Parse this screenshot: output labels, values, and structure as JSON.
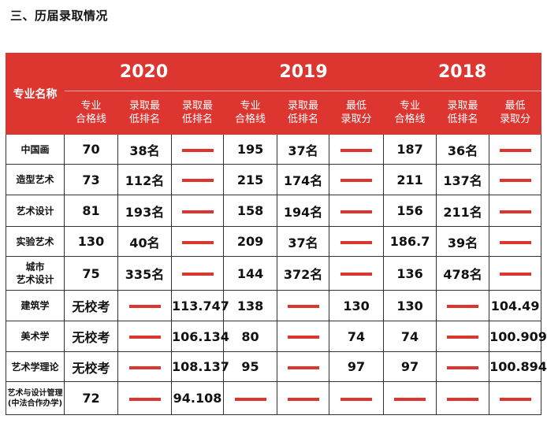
{
  "heading": "三、历届录取情况",
  "table": {
    "major_header": "专业名称",
    "years": [
      {
        "year": "2020",
        "subheaders": [
          "专业\n合格线",
          "录取最\n低排名",
          "录取最\n低排名"
        ]
      },
      {
        "year": "2019",
        "subheaders": [
          "专业\n合格线",
          "录取最\n低排名",
          "最低\n录取分"
        ]
      },
      {
        "year": "2018",
        "subheaders": [
          "专业\n合格线",
          "录取最\n低排名",
          "最低\n录取分"
        ]
      }
    ],
    "dash_color": "#dd3530",
    "header_color": "#dd3530",
    "rows": [
      {
        "major": "中国画",
        "cells": [
          "70",
          "38名",
          "—",
          "195",
          "37名",
          "—",
          "187",
          "36名",
          "—"
        ]
      },
      {
        "major": "造型艺术",
        "cells": [
          "73",
          "112名",
          "—",
          "215",
          "174名",
          "—",
          "211",
          "137名",
          "—"
        ]
      },
      {
        "major": "艺术设计",
        "cells": [
          "81",
          "193名",
          "—",
          "158",
          "194名",
          "—",
          "156",
          "211名",
          "—"
        ]
      },
      {
        "major": "实验艺术",
        "cells": [
          "130",
          "40名",
          "—",
          "209",
          "37名",
          "—",
          "186.7",
          "39名",
          "—"
        ]
      },
      {
        "major": "城市\n艺术设计",
        "cells": [
          "75",
          "335名",
          "—",
          "144",
          "372名",
          "—",
          "136",
          "478名",
          "—"
        ]
      },
      {
        "major": "建筑学",
        "cells": [
          "无校考",
          "—",
          "113.747",
          "138",
          "—",
          "130",
          "130",
          "—",
          "104.49"
        ]
      },
      {
        "major": "美术学",
        "cells": [
          "无校考",
          "—",
          "106.134",
          "80",
          "—",
          "74",
          "74",
          "—",
          "100.909"
        ]
      },
      {
        "major": "艺术学理论",
        "cells": [
          "无校考",
          "—",
          "108.137",
          "95",
          "—",
          "97",
          "97",
          "—",
          "100.894"
        ]
      },
      {
        "major": "艺术与设计管理\n(中法合作办学)",
        "cells": [
          "72",
          "—",
          "94.108",
          "—",
          "—",
          "—",
          "—",
          "—",
          "—"
        ],
        "small": true
      }
    ]
  }
}
